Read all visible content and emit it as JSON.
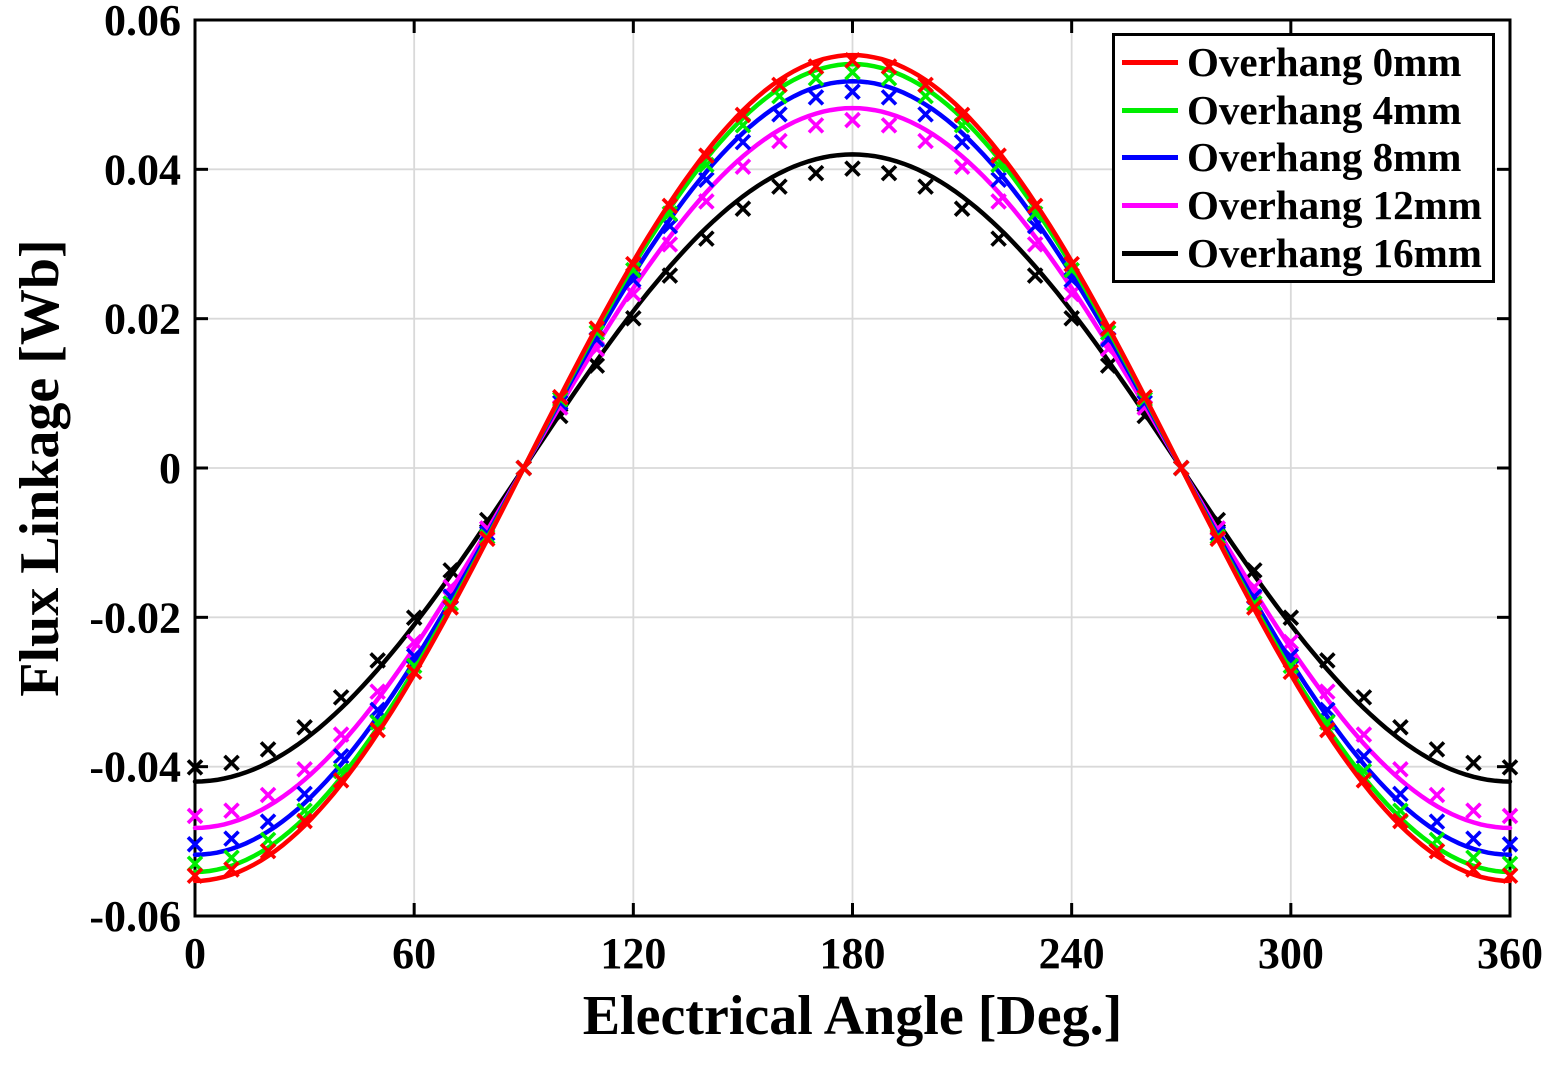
{
  "chart_data": {
    "type": "line",
    "title": "",
    "xlabel": "Electrical Angle [Deg.]",
    "ylabel": "Flux Linkage [Wb]",
    "xlim": [
      0,
      360
    ],
    "ylim": [
      -0.06,
      0.06
    ],
    "xticks": [
      0,
      60,
      120,
      180,
      240,
      300,
      360
    ],
    "xtick_labels": [
      "0",
      "60",
      "120",
      "180",
      "240",
      "300",
      "360"
    ],
    "yticks": [
      0.06,
      0.04,
      0.02,
      0,
      -0.02,
      -0.04,
      -0.06
    ],
    "ytick_labels": [
      "0.06",
      "0.04",
      "0.02",
      "0",
      "-0.02",
      "-0.04",
      "-0.06"
    ],
    "grid": true,
    "grid_color": "#d9d9d9",
    "axis_color": "#000000",
    "legend_position": "top-right",
    "waveform": "value = -amplitude * cos(theta_deg)",
    "marker_angles_deg": [
      0,
      10,
      20,
      30,
      40,
      50,
      60,
      70,
      80,
      90,
      100,
      110,
      120,
      130,
      140,
      150,
      160,
      170,
      180,
      190,
      200,
      210,
      220,
      230,
      240,
      250,
      260,
      270,
      280,
      290,
      300,
      310,
      320,
      330,
      340,
      350,
      360
    ],
    "series": [
      {
        "label": "Overhang 0mm",
        "color": "#ff0000",
        "marker": "x",
        "line_amplitude_wb": 0.0553,
        "marker_amplitude_wb": 0.0546
      },
      {
        "label": "Overhang 4mm",
        "color": "#00ee00",
        "marker": "x",
        "line_amplitude_wb": 0.0541,
        "marker_amplitude_wb": 0.053
      },
      {
        "label": "Overhang 8mm",
        "color": "#0000ff",
        "marker": "x",
        "line_amplitude_wb": 0.0518,
        "marker_amplitude_wb": 0.0504
      },
      {
        "label": "Overhang 12mm",
        "color": "#ff00ff",
        "marker": "x",
        "line_amplitude_wb": 0.0482,
        "marker_amplitude_wb": 0.0466
      },
      {
        "label": "Overhang 16mm",
        "color": "#000000",
        "marker": "x",
        "line_amplitude_wb": 0.042,
        "marker_amplitude_wb": 0.0401
      }
    ]
  }
}
